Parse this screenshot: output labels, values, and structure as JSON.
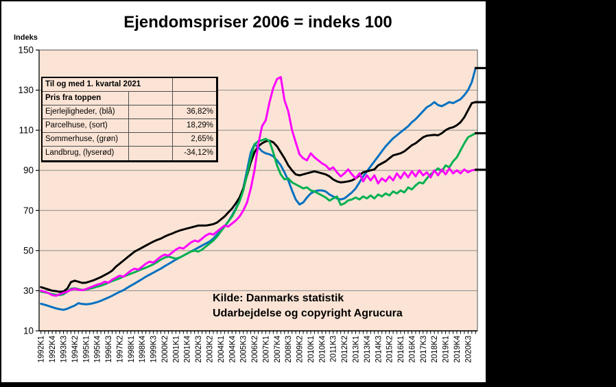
{
  "title": "Ejendomspriser 2006 = indeks 100",
  "axis": {
    "indeks_label": "Indeks"
  },
  "source_note": {
    "line1": "Kilde: Danmarks statistik",
    "line2": "Udarbejdelse og copyright Agrucura"
  },
  "overlay_table": {
    "header": "Til og med 1. kvartal 2021",
    "subheader": "Pris fra toppen",
    "rows": [
      {
        "label": "Ejerlejligheder, (blå)",
        "value": "36,82%"
      },
      {
        "label": "Parcelhuse, (sort)",
        "value": "18,29%"
      },
      {
        "label": "Sommerhuse, (grøn)",
        "value": "2,65%"
      },
      {
        "label": "Landbrug, (lyserød)",
        "value": "-34,12%"
      }
    ]
  },
  "chart_data": {
    "type": "line",
    "title": "Ejendomspriser 2006 = indeks 100",
    "ylabel": "Indeks",
    "ylim": [
      10,
      150
    ],
    "y_ticks": [
      10,
      30,
      50,
      70,
      90,
      110,
      130,
      150
    ],
    "grid": true,
    "plot_background": "#FBE4D5",
    "grid_color": "#8a8a8a",
    "frame_color": "#808080",
    "x_first_quarter": "1992K1",
    "x_last_quarter": "2021K1",
    "n_points": 117,
    "x_tick_step": 3,
    "x_tick_labels": [
      "1992K1",
      "1992K4",
      "1993K3",
      "1994K2",
      "1995K1",
      "1995K4",
      "1996K3",
      "1997K2",
      "1998K1",
      "1998K4",
      "1999K3",
      "2000K2",
      "2001K1",
      "2001K4",
      "2002K3",
      "2003K2",
      "2004K1",
      "2004K4",
      "2005K3",
      "2006K2",
      "2007K1",
      "2007K4",
      "2008K3",
      "2009K2",
      "2010K1",
      "2010K4",
      "2011K3",
      "2012K2",
      "2013K1",
      "2013K4",
      "2014K3",
      "2015K2",
      "2016K1",
      "2016K4",
      "2017K3",
      "2018K2",
      "2019K1",
      "2019K4",
      "2020K3"
    ],
    "series": [
      {
        "name": "Ejerlejligheder",
        "color_label": "blå",
        "color": "#0070C0",
        "values": [
          23.5,
          23.0,
          22.4,
          21.8,
          21.2,
          20.8,
          20.5,
          21.0,
          21.8,
          22.6,
          23.8,
          23.4,
          23.2,
          23.4,
          23.8,
          24.3,
          25.0,
          25.8,
          26.6,
          27.5,
          28.5,
          29.4,
          30.3,
          31.4,
          32.5,
          33.6,
          34.7,
          35.8,
          37.0,
          38.0,
          39.0,
          40.0,
          41.0,
          42.2,
          43.3,
          44.4,
          45.5,
          46.5,
          47.5,
          48.5,
          49.5,
          50.5,
          51.5,
          52.5,
          53.5,
          54.5,
          56.0,
          58.0,
          60.0,
          62.0,
          64.5,
          67.5,
          71.0,
          75.0,
          81.0,
          90.0,
          99.0,
          103.0,
          101.5,
          99.5,
          98.5,
          98.0,
          97.0,
          95.0,
          92.5,
          89.0,
          85.0,
          80.0,
          75.5,
          73.0,
          74.0,
          76.5,
          78.5,
          79.5,
          80.0,
          80.0,
          79.5,
          78.0,
          77.0,
          76.0,
          75.5,
          76.0,
          77.5,
          79.0,
          81.0,
          84.0,
          87.0,
          89.5,
          92.0,
          94.5,
          97.0,
          99.5,
          102.0,
          104.0,
          106.0,
          107.5,
          109.0,
          110.5,
          112.0,
          114.0,
          115.5,
          117.5,
          119.5,
          121.5,
          122.5,
          124.0,
          122.5,
          122.0,
          123.0,
          124.0,
          123.5,
          124.5,
          125.5,
          127.5,
          130.0,
          134.0,
          141.0
        ]
      },
      {
        "name": "Parcelhuse",
        "color_label": "sort",
        "color": "#000000",
        "values": [
          31.8,
          31.2,
          30.6,
          30.0,
          29.8,
          29.4,
          29.6,
          31.0,
          34.3,
          35.0,
          34.5,
          33.9,
          34.0,
          34.6,
          35.2,
          36.0,
          36.8,
          37.8,
          38.8,
          40.0,
          42.0,
          43.5,
          45.0,
          46.5,
          48.0,
          49.5,
          50.5,
          51.5,
          52.5,
          53.5,
          54.5,
          55.3,
          56.0,
          57.0,
          57.8,
          58.5,
          59.3,
          60.0,
          60.5,
          61.0,
          61.5,
          62.0,
          62.5,
          62.5,
          62.5,
          62.8,
          63.2,
          64.0,
          65.5,
          67.0,
          69.0,
          71.0,
          73.5,
          76.5,
          81.0,
          87.5,
          94.0,
          99.0,
          102.0,
          103.5,
          104.5,
          104.8,
          104.0,
          102.0,
          99.0,
          96.0,
          92.5,
          90.0,
          88.0,
          87.5,
          88.0,
          88.5,
          89.0,
          89.5,
          89.0,
          88.5,
          88.0,
          87.0,
          85.5,
          84.5,
          84.0,
          84.2,
          84.5,
          85.0,
          86.0,
          87.5,
          89.0,
          89.5,
          90.0,
          90.5,
          92.5,
          93.5,
          94.5,
          96.0,
          97.5,
          98.0,
          98.5,
          99.5,
          101.0,
          102.5,
          103.5,
          105.0,
          106.5,
          107.3,
          107.5,
          107.7,
          107.5,
          108.5,
          110.0,
          111.0,
          111.5,
          112.5,
          114.0,
          116.5,
          120.0,
          123.5,
          124.0
        ]
      },
      {
        "name": "Sommerhuse",
        "color_label": "grøn",
        "color": "#00B050",
        "values": [
          29.5,
          29.2,
          28.8,
          28.3,
          28.0,
          27.8,
          28.2,
          29.5,
          31.0,
          31.2,
          30.8,
          30.4,
          30.6,
          31.0,
          31.5,
          32.0,
          32.5,
          33.2,
          34.0,
          34.8,
          35.5,
          36.2,
          37.0,
          37.8,
          38.5,
          39.2,
          40.0,
          40.8,
          41.5,
          42.3,
          43.2,
          44.3,
          45.5,
          46.5,
          47.0,
          46.5,
          46.0,
          46.5,
          47.5,
          48.5,
          49.5,
          50.0,
          49.5,
          50.5,
          52.0,
          53.5,
          55.0,
          57.0,
          59.5,
          62.0,
          64.5,
          67.0,
          70.5,
          74.5,
          80.0,
          88.0,
          96.0,
          103.0,
          104.5,
          105.0,
          105.7,
          104.5,
          99.0,
          92.5,
          88.0,
          85.5,
          86.0,
          84.0,
          83.0,
          82.0,
          81.0,
          81.5,
          80.0,
          79.5,
          78.5,
          77.5,
          76.5,
          74.9,
          76.0,
          77.0,
          72.8,
          73.5,
          75.0,
          75.5,
          76.5,
          75.5,
          77.0,
          76.0,
          77.5,
          76.0,
          78.0,
          77.0,
          78.5,
          77.5,
          79.5,
          78.5,
          80.0,
          79.0,
          81.5,
          80.5,
          82.5,
          84.0,
          83.5,
          86.0,
          88.0,
          89.5,
          91.0,
          89.5,
          92.5,
          91.5,
          94.5,
          96.5,
          100.0,
          103.5,
          106.5,
          107.5,
          108.5
        ]
      },
      {
        "name": "Landbrug",
        "color_label": "lyserød",
        "color": "#FF00FF",
        "values": [
          30.0,
          29.5,
          28.8,
          27.8,
          27.5,
          28.2,
          29.0,
          29.5,
          30.5,
          31.0,
          30.5,
          30.2,
          30.8,
          31.5,
          32.3,
          33.0,
          33.5,
          34.5,
          34.0,
          35.5,
          36.5,
          37.5,
          37.0,
          38.5,
          40.0,
          41.0,
          40.5,
          42.0,
          43.5,
          44.5,
          44.0,
          45.5,
          47.0,
          48.0,
          47.5,
          49.0,
          50.5,
          51.5,
          51.0,
          52.5,
          54.0,
          55.0,
          54.5,
          56.0,
          57.5,
          58.5,
          58.0,
          59.5,
          61.0,
          62.5,
          62.0,
          63.5,
          65.0,
          67.0,
          70.0,
          74.0,
          81.0,
          90.0,
          103.0,
          112.0,
          115.0,
          124.0,
          131.0,
          135.5,
          136.5,
          125.0,
          119.5,
          110.0,
          104.0,
          98.0,
          96.0,
          95.0,
          98.5,
          96.5,
          95.0,
          93.5,
          92.5,
          90.5,
          91.5,
          89.0,
          87.0,
          88.5,
          90.5,
          88.0,
          86.0,
          88.5,
          84.5,
          87.5,
          85.0,
          87.5,
          83.5,
          86.0,
          84.5,
          87.0,
          85.0,
          88.5,
          86.0,
          89.0,
          86.5,
          89.5,
          87.0,
          90.0,
          87.5,
          89.0,
          86.5,
          90.0,
          87.5,
          90.5,
          88.0,
          91.0,
          88.5,
          90.0,
          88.5,
          90.5,
          89.0,
          90.0,
          90.3
        ]
      }
    ]
  }
}
